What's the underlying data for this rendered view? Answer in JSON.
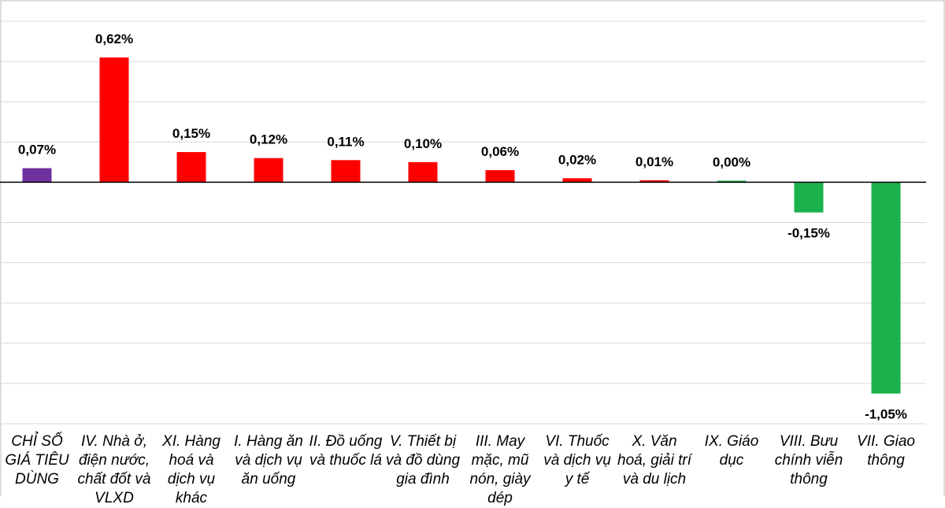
{
  "chart_data": {
    "type": "bar",
    "title": "",
    "xlabel": "",
    "ylabel": "",
    "ylim": [
      -1.2,
      0.8
    ],
    "grid_step": 0.2,
    "grid": true,
    "value_suffix": "%",
    "categories": [
      "CHỈ SỐ GIÁ TIÊU DÙNG",
      "IV. Nhà ở, điện nước, chất đốt và VLXD",
      "XI. Hàng hoá và dịch vụ khác",
      "I. Hàng ăn và dịch vụ ăn uống",
      "II. Đồ uống và thuốc lá",
      "V. Thiết bị và đồ dùng gia đình",
      "III. May mặc, mũ nón, giày dép",
      "VI. Thuốc và dịch vụ y tế",
      "X. Văn hoá, giải trí và du lịch",
      "IX. Giáo dục",
      "VIII. Bưu chính viễn thông",
      "VII. Giao thông"
    ],
    "values": [
      0.07,
      0.62,
      0.15,
      0.12,
      0.11,
      0.1,
      0.06,
      0.02,
      0.01,
      0.0,
      -0.15,
      -1.05
    ],
    "data_labels": [
      "0,07%",
      "0,62%",
      "0,15%",
      "0,12%",
      "0,11%",
      "0,10%",
      "0,06%",
      "0,02%",
      "0,01%",
      "0,00%",
      "-0,15%",
      "-1,05%"
    ],
    "colors": {
      "index": "#7030A0",
      "increase": "#FF0000",
      "unchanged_or_decrease": "#1BB14C"
    }
  }
}
